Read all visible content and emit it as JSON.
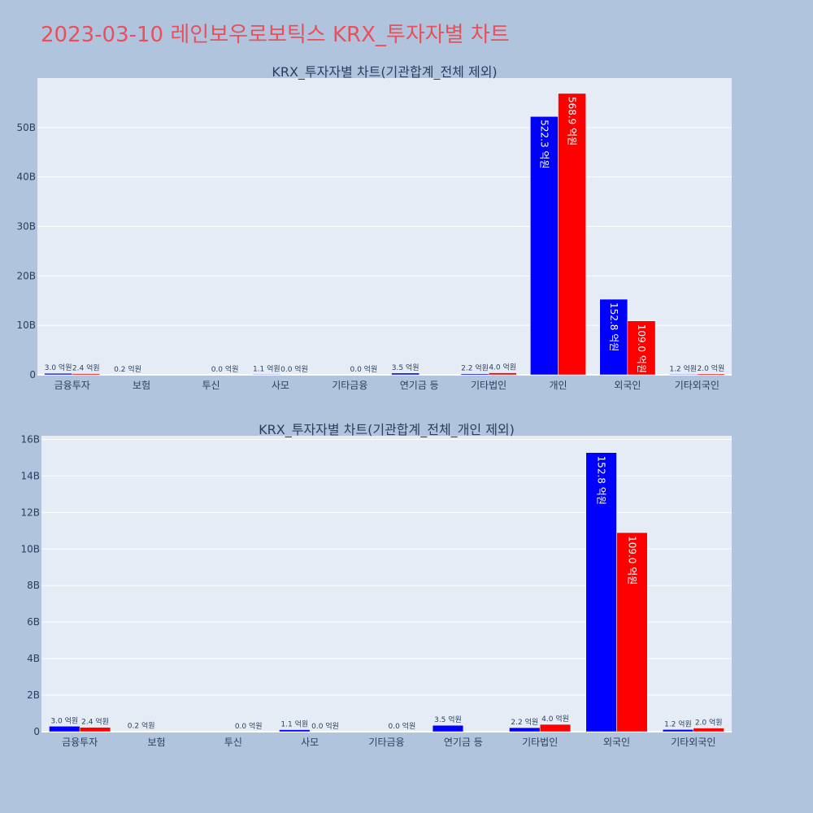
{
  "title": "2023-03-10 레인보우로보틱스 KRX_투자자별 차트",
  "colors": {
    "buy": "#0000ff",
    "sell": "#ff0000",
    "plot_bg": "#e5ecf6",
    "page_bg": "#b0c4de",
    "title": "#e8505b"
  },
  "chart_data": [
    {
      "type": "bar",
      "title": "KRX_투자자별 차트(기관합계_전체 제외)",
      "categories": [
        "금융투자",
        "보험",
        "투신",
        "사모",
        "기타금융",
        "연기금 등",
        "기타법인",
        "개인",
        "외국인",
        "기타외국인"
      ],
      "series": [
        {
          "values": [
            0.3,
            0.02,
            0,
            0.11,
            0,
            0.35,
            0.22,
            52.23,
            15.28,
            0.12
          ],
          "labels": [
            "3.0 억원",
            "0.2 억원",
            "",
            "1.1 억원",
            "",
            "3.5 억원",
            "2.2 억원",
            "522.3 억원",
            "152.8 억원",
            "1.2 억원"
          ]
        },
        {
          "values": [
            0.24,
            0,
            0.0,
            0.0,
            0.0,
            0,
            0.4,
            56.89,
            10.9,
            0.2
          ],
          "labels": [
            "2.4 억원",
            "",
            "0.0 억원",
            "0.0 억원",
            "0.0 억원",
            "",
            "4.0 억원",
            "568.9 억원",
            "109.0 억원",
            "2.0 억원"
          ]
        }
      ],
      "y_unit": "B",
      "ylim": [
        0,
        60
      ],
      "yticks": [
        0,
        10,
        20,
        30,
        40,
        50
      ],
      "ytick_labels": [
        "0",
        "10B",
        "20B",
        "30B",
        "40B",
        "50B"
      ],
      "grid": true,
      "legend": "none"
    },
    {
      "type": "bar",
      "title": "KRX_투자자별 차트(기관합계_전체_개인 제외)",
      "categories": [
        "금융투자",
        "보험",
        "투신",
        "사모",
        "기타금융",
        "연기금 등",
        "기타법인",
        "외국인",
        "기타외국인"
      ],
      "series": [
        {
          "values": [
            0.3,
            0.02,
            0,
            0.11,
            0,
            0.35,
            0.22,
            15.28,
            0.12
          ],
          "labels": [
            "3.0 억원",
            "0.2 억원",
            "",
            "1.1 억원",
            "",
            "3.5 억원",
            "2.2 억원",
            "152.8 억원",
            "1.2 억원"
          ]
        },
        {
          "values": [
            0.24,
            0,
            0.0,
            0.0,
            0.0,
            0,
            0.4,
            10.9,
            0.2
          ],
          "labels": [
            "2.4 억원",
            "",
            "0.0 억원",
            "0.0 억원",
            "0.0 억원",
            "",
            "4.0 억원",
            "109.0 억원",
            "2.0 억원"
          ]
        }
      ],
      "y_unit": "B",
      "ylim": [
        0,
        16.2
      ],
      "yticks": [
        0,
        2,
        4,
        6,
        8,
        10,
        12,
        14,
        16
      ],
      "ytick_labels": [
        "0",
        "2B",
        "4B",
        "6B",
        "8B",
        "10B",
        "12B",
        "14B",
        "16B"
      ],
      "grid": true,
      "legend": "none"
    }
  ]
}
